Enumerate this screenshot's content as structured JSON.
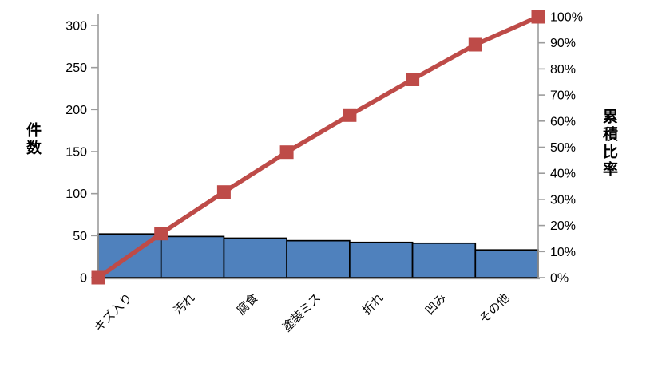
{
  "chart_data": {
    "type": "bar",
    "subtype": "pareto-combo-bar-line",
    "title": "",
    "categories": [
      "キズ入り",
      "汚れ",
      "腐食",
      "塗装ミス",
      "折れ",
      "凹み",
      "その他"
    ],
    "series": [
      {
        "name": "件数",
        "type": "bar",
        "axis": "left",
        "values": [
          52,
          49,
          47,
          44,
          42,
          41,
          33
        ]
      },
      {
        "name": "累積比率",
        "type": "line",
        "axis": "right",
        "start_pct": 0,
        "cumulative_pct": [
          16.9,
          32.8,
          48.1,
          62.3,
          76.0,
          89.3,
          100.0
        ]
      }
    ],
    "left_axis": {
      "label": "件数",
      "ticks": [
        0,
        50,
        100,
        150,
        200,
        250,
        300
      ],
      "range": [
        0,
        300
      ]
    },
    "right_axis": {
      "label": "累積比率",
      "ticks": [
        "0%",
        "10%",
        "20%",
        "30%",
        "40%",
        "50%",
        "60%",
        "70%",
        "80%",
        "90%",
        "100%"
      ],
      "range": [
        0,
        100
      ]
    },
    "grid": false,
    "legend": "none",
    "colors": {
      "bar_fill": "#4F81BD",
      "bar_border": "#000000",
      "line": "#BE4B48",
      "marker": "#BE4B48",
      "axis": "#9C9C9C",
      "text": "#000000"
    }
  }
}
